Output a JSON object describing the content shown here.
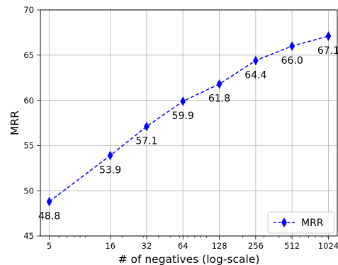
{
  "chart_data": {
    "type": "line",
    "xscale": "log",
    "x": [
      5,
      16,
      32,
      64,
      128,
      256,
      512,
      1024
    ],
    "xtick_labels": [
      "5",
      "16",
      "32",
      "64",
      "128",
      "256",
      "512",
      "1024"
    ],
    "series": [
      {
        "name": "MRR",
        "values": [
          48.8,
          53.9,
          57.1,
          59.9,
          61.8,
          64.4,
          66.0,
          67.1
        ],
        "labels": [
          "48.8",
          "53.9",
          "57.1",
          "59.9",
          "61.8",
          "64.4",
          "66.0",
          "67.1"
        ],
        "color": "#0000ff",
        "linestyle": "dashed",
        "marker": "thin-diamond"
      }
    ],
    "xlabel": "# of negatives (log-scale)",
    "ylabel": "MRR",
    "ylim": [
      45,
      70
    ],
    "yticks": [
      45,
      50,
      55,
      60,
      65,
      70
    ],
    "grid": true,
    "legend_position": "lower-right"
  }
}
